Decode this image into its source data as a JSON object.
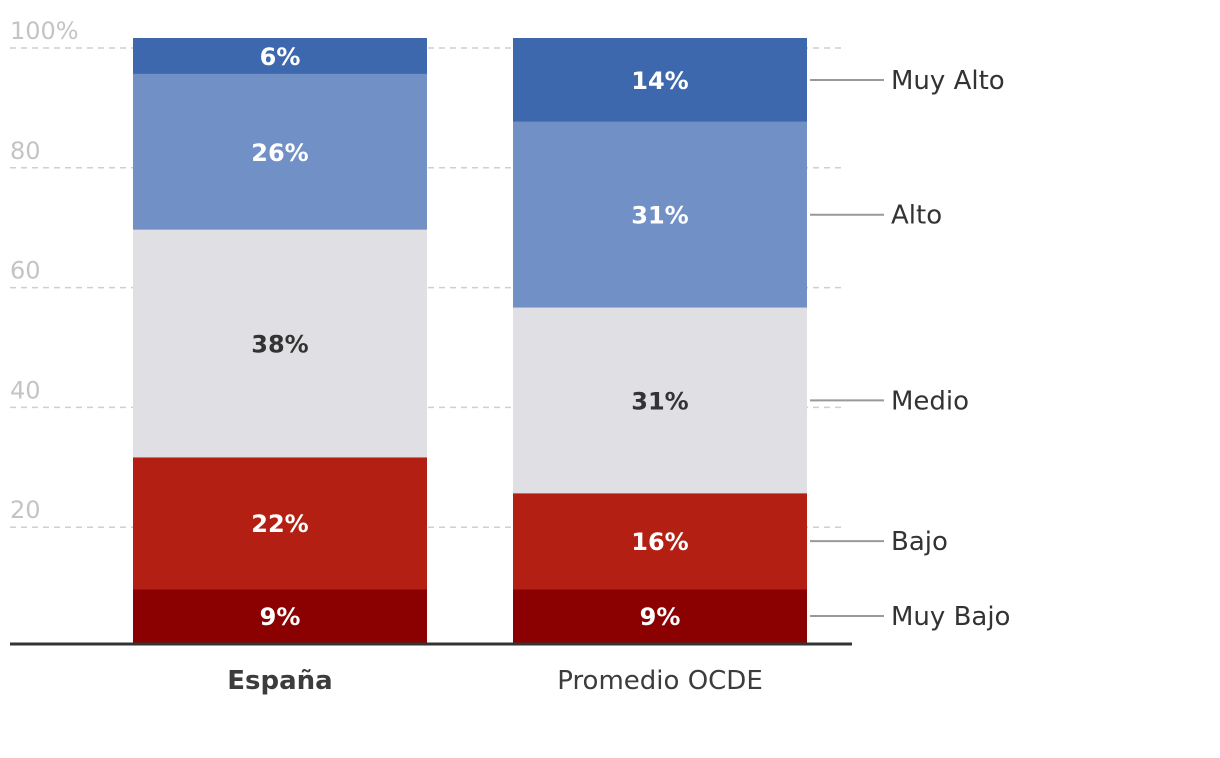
{
  "chart_data": {
    "type": "bar",
    "stacked": true,
    "categories": [
      "España",
      "Promedio OCDE"
    ],
    "bold_category": "España",
    "yticks": [
      {
        "value": 20,
        "label": "20"
      },
      {
        "value": 40,
        "label": "40"
      },
      {
        "value": 60,
        "label": "60"
      },
      {
        "value": 80,
        "label": "80"
      },
      {
        "value": 100,
        "label": "100%"
      }
    ],
    "ylim": [
      0,
      100
    ],
    "grid": true,
    "legend_placement": "right, inline with Promedio OCDE segments",
    "series": [
      {
        "name": "Muy Bajo",
        "values": [
          9,
          9
        ],
        "labels": [
          "9%",
          "9%"
        ],
        "color": "#8b0000",
        "label_color": "#ffffff"
      },
      {
        "name": "Bajo",
        "values": [
          22,
          16
        ],
        "labels": [
          "22%",
          "16%"
        ],
        "color": "#b31f12",
        "label_color": "#ffffff"
      },
      {
        "name": "Medio",
        "values": [
          38,
          31
        ],
        "labels": [
          "38%",
          "31%"
        ],
        "color": "#e0dfe4",
        "label_color": "#333333"
      },
      {
        "name": "Alto",
        "values": [
          26,
          31
        ],
        "labels": [
          "26%",
          "31%"
        ],
        "color": "#7090c6",
        "label_color": "#ffffff"
      },
      {
        "name": "Muy Alto",
        "values": [
          6,
          14
        ],
        "labels": [
          "6%",
          "14%"
        ],
        "color": "#3e68ad",
        "label_color": "#ffffff"
      }
    ]
  }
}
